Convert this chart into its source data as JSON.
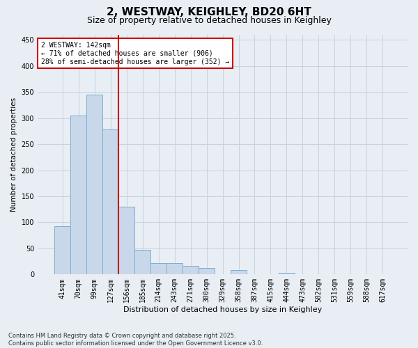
{
  "title": "2, WESTWAY, KEIGHLEY, BD20 6HT",
  "subtitle": "Size of property relative to detached houses in Keighley",
  "xlabel": "Distribution of detached houses by size in Keighley",
  "ylabel": "Number of detached properties",
  "categories": [
    "41sqm",
    "70sqm",
    "99sqm",
    "127sqm",
    "156sqm",
    "185sqm",
    "214sqm",
    "243sqm",
    "271sqm",
    "300sqm",
    "329sqm",
    "358sqm",
    "387sqm",
    "415sqm",
    "444sqm",
    "473sqm",
    "502sqm",
    "531sqm",
    "559sqm",
    "588sqm",
    "617sqm"
  ],
  "values": [
    93,
    305,
    345,
    278,
    130,
    47,
    22,
    22,
    17,
    12,
    0,
    8,
    0,
    0,
    3,
    0,
    0,
    0,
    1,
    0,
    1
  ],
  "bar_color": "#c8d8ea",
  "bar_edge_color": "#7aaed0",
  "bar_edge_width": 0.7,
  "vline_color": "#cc0000",
  "annotation_text": "2 WESTWAY: 142sqm\n← 71% of detached houses are smaller (906)\n28% of semi-detached houses are larger (352) →",
  "annotation_box_color": "#ffffff",
  "annotation_box_edge": "#cc0000",
  "grid_color": "#c5d3df",
  "background_color": "#e8eef4",
  "ylim": [
    0,
    460
  ],
  "yticks": [
    0,
    50,
    100,
    150,
    200,
    250,
    300,
    350,
    400,
    450
  ],
  "footer": "Contains HM Land Registry data © Crown copyright and database right 2025.\nContains public sector information licensed under the Open Government Licence v3.0.",
  "title_fontsize": 11,
  "subtitle_fontsize": 9,
  "xlabel_fontsize": 8,
  "ylabel_fontsize": 7.5,
  "tick_fontsize": 7,
  "footer_fontsize": 6
}
